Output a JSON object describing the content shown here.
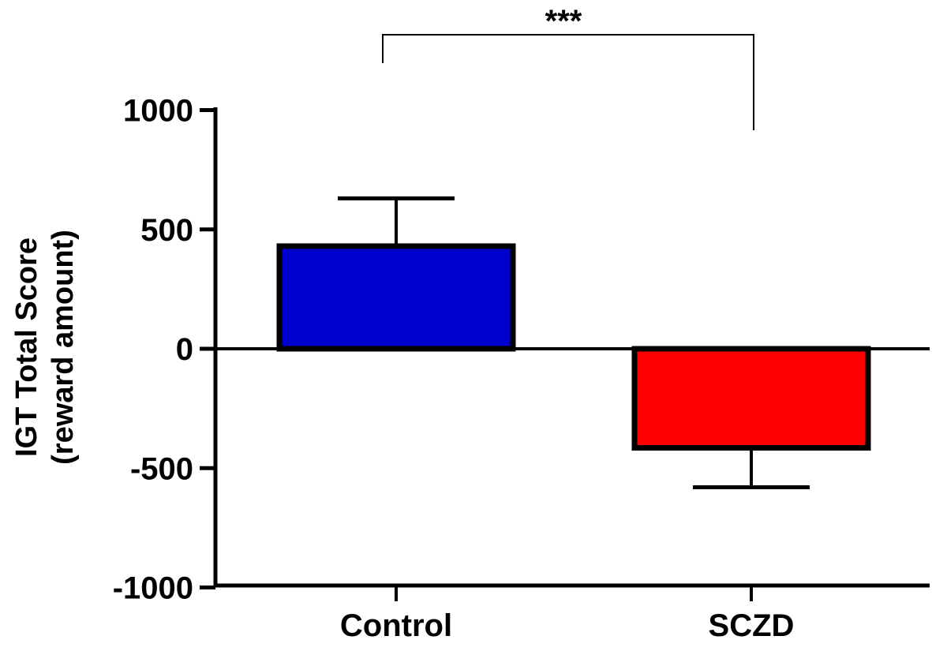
{
  "chart_data": {
    "type": "bar",
    "title": "",
    "xlabel": "",
    "ylabel": [
      "IGT Total Score",
      "(reward amount)"
    ],
    "categories": [
      "Control",
      "SCZD"
    ],
    "values": [
      430,
      -415
    ],
    "error_upper": [
      630,
      -580
    ],
    "colors": [
      "#0000cc",
      "#ff0000"
    ],
    "ylim": [
      -1000,
      1000
    ],
    "yticks": [
      1000,
      500,
      0,
      -500,
      -1000
    ],
    "ytick_labels": [
      "1000",
      "500",
      "0",
      "-500",
      "-1000"
    ],
    "grid": false,
    "annotation": {
      "text": "***",
      "between": [
        "Control",
        "SCZD"
      ]
    }
  }
}
